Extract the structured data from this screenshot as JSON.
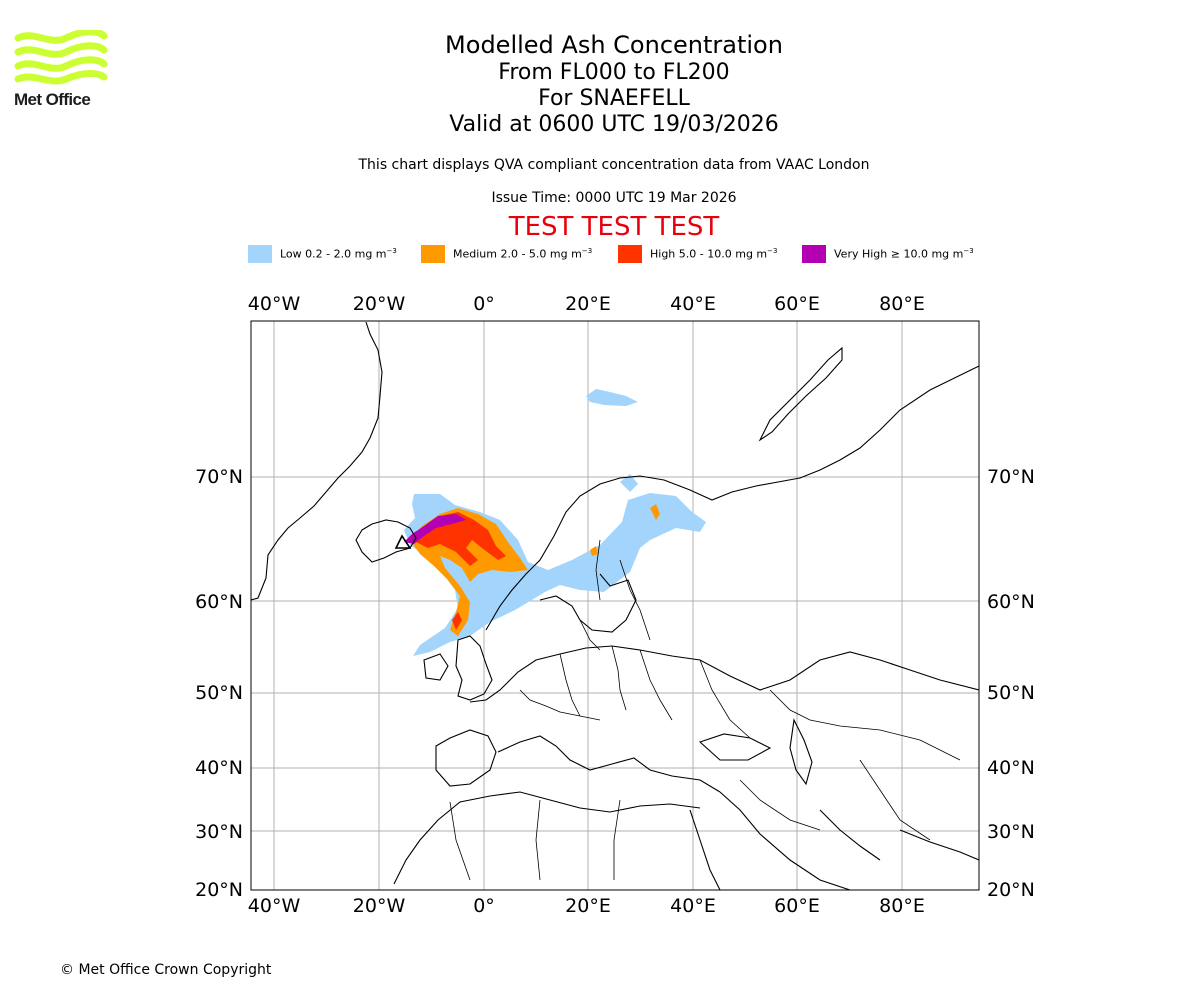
{
  "logo": {
    "text": "Met Office",
    "color": "#ccff33"
  },
  "title": {
    "main": "Modelled Ash Concentration",
    "level": "From FL000 to FL200",
    "volcano": "For SNAEFELL",
    "valid": "Valid at 0600 UTC 19/03/2026"
  },
  "description": "This chart displays QVA compliant concentration data from VAAC London",
  "issue_time": "Issue Time: 0000 UTC 19 Mar 2026",
  "test_banner": "TEST TEST TEST",
  "legend": [
    {
      "label_pre": "Low 0.2 - 2.0 mg m",
      "color": "#a3d4fc"
    },
    {
      "label_pre": "Medium 2.0 - 5.0 mg m",
      "color": "#ff9900"
    },
    {
      "label_pre": "High 5.0 - 10.0 mg m",
      "color": "#ff3300"
    },
    {
      "label_pre": "Very High ≥ 10.0 mg m",
      "color": "#b300b3"
    }
  ],
  "legend_unit_exp": "−3",
  "axes": {
    "longitude_labels": [
      "40°W",
      "20°W",
      "0°",
      "20°E",
      "40°E",
      "60°E",
      "80°E"
    ],
    "latitude_labels": [
      "70°N",
      "60°N",
      "50°N",
      "40°N",
      "30°N",
      "20°N"
    ]
  },
  "copyright": "© Met Office Crown Copyright"
}
